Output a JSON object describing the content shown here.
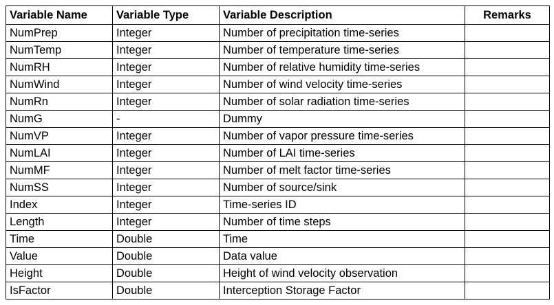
{
  "table": {
    "headers": [
      "Variable Name",
      "Variable Type",
      "Variable Description",
      "Remarks"
    ],
    "rows": [
      [
        "NumPrep",
        "Integer",
        "Number of precipitation time-series",
        ""
      ],
      [
        "NumTemp",
        "Integer",
        "Number of temperature time-series",
        ""
      ],
      [
        "NumRH",
        "Integer",
        "Number of relative humidity time-series",
        ""
      ],
      [
        "NumWind",
        "Integer",
        "Number of wind velocity time-series",
        ""
      ],
      [
        "NumRn",
        "Integer",
        "Number of solar radiation time-series",
        ""
      ],
      [
        "NumG",
        "-",
        "Dummy",
        ""
      ],
      [
        "NumVP",
        "Integer",
        "Number of vapor pressure time-series",
        ""
      ],
      [
        "NumLAI",
        "Integer",
        "Number of LAI time-series",
        ""
      ],
      [
        "NumMF",
        "Integer",
        "Number of melt factor time-series",
        ""
      ],
      [
        "NumSS",
        "Integer",
        "Number of source/sink",
        ""
      ],
      [
        "Index",
        "Integer",
        "Time-series ID",
        ""
      ],
      [
        "Length",
        "Integer",
        "Number of time steps",
        ""
      ],
      [
        "Time",
        "Double",
        "Time",
        ""
      ],
      [
        "Value",
        "Double",
        "Data value",
        ""
      ],
      [
        "Height",
        "Double",
        "Height of wind velocity observation",
        ""
      ],
      [
        "IsFactor",
        "Double",
        "Interception Storage Factor",
        ""
      ]
    ]
  }
}
